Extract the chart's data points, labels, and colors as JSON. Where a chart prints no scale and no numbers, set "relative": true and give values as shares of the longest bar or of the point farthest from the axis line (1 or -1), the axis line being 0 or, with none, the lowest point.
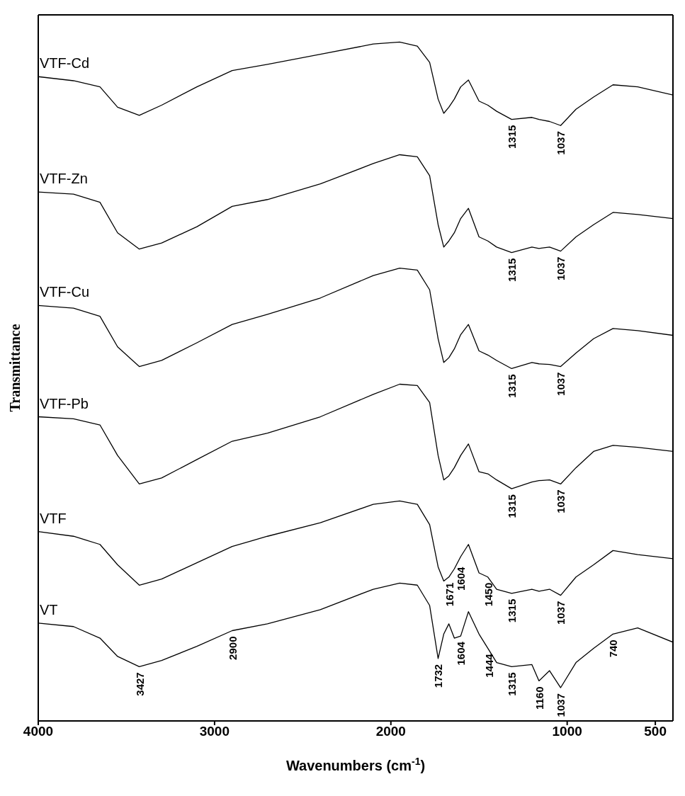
{
  "chart_data": {
    "type": "line",
    "relative": true,
    "xlabel": "Wavenumbers (cm$^{-1}$)",
    "ylabel": "Transmittance",
    "xlim": [
      4000,
      400
    ],
    "xticks": [
      4000,
      3000,
      2000,
      1000,
      500
    ],
    "x": [
      4000,
      3800,
      3650,
      3550,
      3427,
      3300,
      3100,
      2900,
      2700,
      2400,
      2100,
      1950,
      1850,
      1780,
      1732,
      1700,
      1671,
      1640,
      1604,
      1560,
      1500,
      1450,
      1400,
      1315,
      1200,
      1160,
      1100,
      1037,
      950,
      850,
      740,
      600,
      400
    ],
    "series": [
      {
        "name": "VTF-Cd",
        "color": "#000000",
        "values": [
          0.949,
          0.943,
          0.934,
          0.904,
          0.892,
          0.907,
          0.934,
          0.958,
          0.967,
          0.982,
          0.997,
          1.0,
          0.994,
          0.97,
          0.916,
          0.895,
          0.904,
          0.916,
          0.934,
          0.944,
          0.913,
          0.907,
          0.898,
          0.886,
          0.889,
          0.886,
          0.883,
          0.877,
          0.901,
          0.919,
          0.937,
          0.934,
          0.922
        ]
      },
      {
        "name": "VTF-Zn",
        "color": "#000000",
        "values": [
          0.779,
          0.776,
          0.764,
          0.719,
          0.695,
          0.704,
          0.728,
          0.758,
          0.768,
          0.791,
          0.821,
          0.834,
          0.831,
          0.803,
          0.731,
          0.698,
          0.707,
          0.719,
          0.74,
          0.755,
          0.713,
          0.707,
          0.698,
          0.69,
          0.698,
          0.696,
          0.698,
          0.692,
          0.713,
          0.731,
          0.749,
          0.746,
          0.74
        ]
      },
      {
        "name": "VTF-Cu",
        "color": "#000000",
        "values": [
          0.612,
          0.608,
          0.596,
          0.551,
          0.522,
          0.531,
          0.557,
          0.584,
          0.599,
          0.623,
          0.656,
          0.667,
          0.664,
          0.635,
          0.563,
          0.528,
          0.535,
          0.548,
          0.569,
          0.584,
          0.545,
          0.539,
          0.531,
          0.519,
          0.528,
          0.526,
          0.525,
          0.522,
          0.542,
          0.563,
          0.578,
          0.575,
          0.568
        ]
      },
      {
        "name": "VTF-Pb",
        "color": "#000000",
        "values": [
          0.448,
          0.445,
          0.436,
          0.391,
          0.349,
          0.358,
          0.385,
          0.412,
          0.424,
          0.448,
          0.481,
          0.496,
          0.494,
          0.469,
          0.391,
          0.355,
          0.361,
          0.373,
          0.391,
          0.408,
          0.367,
          0.364,
          0.355,
          0.342,
          0.352,
          0.354,
          0.355,
          0.349,
          0.373,
          0.397,
          0.406,
          0.403,
          0.397
        ]
      },
      {
        "name": "VTF",
        "color": "#000000",
        "values": [
          0.279,
          0.272,
          0.26,
          0.23,
          0.2,
          0.209,
          0.233,
          0.257,
          0.272,
          0.292,
          0.319,
          0.324,
          0.319,
          0.289,
          0.227,
          0.206,
          0.212,
          0.224,
          0.242,
          0.26,
          0.218,
          0.212,
          0.194,
          0.188,
          0.194,
          0.191,
          0.194,
          0.185,
          0.212,
          0.23,
          0.251,
          0.245,
          0.239
        ]
      },
      {
        "name": "VT",
        "color": "#000000",
        "values": [
          0.144,
          0.139,
          0.122,
          0.095,
          0.08,
          0.089,
          0.11,
          0.133,
          0.143,
          0.164,
          0.194,
          0.203,
          0.2,
          0.17,
          0.092,
          0.128,
          0.143,
          0.122,
          0.125,
          0.161,
          0.128,
          0.107,
          0.086,
          0.08,
          0.083,
          0.059,
          0.074,
          0.049,
          0.086,
          0.107,
          0.128,
          0.137,
          0.116
        ]
      }
    ],
    "annotations": [
      {
        "text": "1315",
        "x": 1315,
        "y": 0.886
      },
      {
        "text": "1037",
        "x": 1037,
        "y": 0.877
      },
      {
        "text": "1315",
        "x": 1315,
        "y": 0.69
      },
      {
        "text": "1037",
        "x": 1037,
        "y": 0.692
      },
      {
        "text": "1315",
        "x": 1315,
        "y": 0.519
      },
      {
        "text": "1037",
        "x": 1037,
        "y": 0.522
      },
      {
        "text": "1315",
        "x": 1315,
        "y": 0.342
      },
      {
        "text": "1037",
        "x": 1037,
        "y": 0.349
      },
      {
        "text": "1671",
        "x": 1671,
        "y": 0.212
      },
      {
        "text": "1604",
        "x": 1604,
        "y": 0.235
      },
      {
        "text": "1450",
        "x": 1450,
        "y": 0.212
      },
      {
        "text": "1315",
        "x": 1315,
        "y": 0.188
      },
      {
        "text": "1037",
        "x": 1037,
        "y": 0.185
      },
      {
        "text": "3427",
        "x": 3427,
        "y": 0.08
      },
      {
        "text": "2900",
        "x": 2900,
        "y": 0.133
      },
      {
        "text": "1732",
        "x": 1732,
        "y": 0.092
      },
      {
        "text": "1604",
        "x": 1604,
        "y": 0.125
      },
      {
        "text": "1444",
        "x": 1444,
        "y": 0.107
      },
      {
        "text": "1315",
        "x": 1315,
        "y": 0.08
      },
      {
        "text": "1160",
        "x": 1160,
        "y": 0.059
      },
      {
        "text": "1037",
        "x": 1037,
        "y": 0.049
      },
      {
        "text": "740",
        "x": 740,
        "y": 0.128
      }
    ]
  }
}
